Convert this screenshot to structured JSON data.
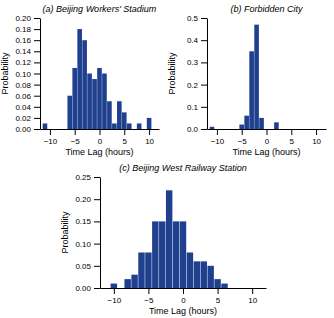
{
  "chart_data": [
    {
      "type": "histogram",
      "title": "(a) Beijing Workers' Stadium",
      "xlabel": "Time Lag (hours)",
      "ylabel": "Probability",
      "color": "#1F3F8F",
      "bins": [
        -11.5,
        -10.5,
        -9.5,
        -8.5,
        -7.5,
        -6.5,
        -5.5,
        -4.5,
        -3.5,
        -2.5,
        -1.5,
        -0.5,
        0.5,
        1.5,
        2.5,
        3.5,
        4.5,
        5.5,
        6.5,
        7.5,
        8.5,
        9.5,
        10.5,
        11.5
      ],
      "values": [
        0.01,
        0.0,
        0.0,
        0.0,
        0.0,
        0.06,
        0.11,
        0.18,
        0.16,
        0.1,
        0.09,
        0.11,
        0.1,
        0.05,
        0.01,
        0.05,
        0.03,
        0.01,
        0.0,
        0.01,
        0.0,
        0.02,
        0.0
      ],
      "xlim": [
        -12,
        12
      ],
      "xticks": [
        {
          "value": -10,
          "label": "−10"
        },
        {
          "value": -5,
          "label": "−5"
        },
        0,
        5,
        10
      ],
      "ylim": [
        0,
        0.2
      ],
      "yticks": [
        {
          "value": 0.0,
          "label": "0.00"
        },
        0.02,
        0.04,
        0.06,
        0.08,
        {
          "value": 0.1,
          "label": "0.10"
        },
        0.12,
        0.14,
        0.16,
        0.18,
        {
          "value": 0.2,
          "label": "0.20"
        }
      ]
    },
    {
      "type": "histogram",
      "title": "(b) Forbidden City",
      "xlabel": "Time Lag (hours)",
      "ylabel": "Probability",
      "color": "#1F3F8F",
      "bins": [
        -11.5,
        -10.5,
        -9.5,
        -8.5,
        -7.5,
        -6.5,
        -5.5,
        -4.5,
        -3.5,
        -2.5,
        -1.5,
        -0.5,
        0.5,
        1.5,
        2.5,
        3.5,
        4.5,
        5.5,
        6.5,
        7.5,
        8.5,
        9.5,
        10.5,
        11.5
      ],
      "values": [
        0.01,
        0.0,
        0.0,
        0.0,
        0.0,
        0.0,
        0.02,
        0.06,
        0.35,
        0.47,
        0.05,
        0.0,
        0.0,
        0.03,
        0.0,
        0.0,
        0.0,
        0.0,
        0.0,
        0.0,
        0.0,
        0.0,
        0.0
      ],
      "xlim": [
        -12,
        12
      ],
      "xticks": [
        {
          "value": -10,
          "label": "−10"
        },
        {
          "value": -5,
          "label": "−5"
        },
        0,
        5,
        10
      ],
      "ylim": [
        0,
        0.5
      ],
      "yticks": [
        {
          "value": 0.0,
          "label": "0.0"
        },
        0.1,
        0.2,
        0.3,
        0.4,
        0.5
      ]
    },
    {
      "type": "histogram",
      "title": "(c) Beijing West Railway Station",
      "xlabel": "Time Lag (hours)",
      "ylabel": "Probability",
      "color": "#1F3F8F",
      "bins": [
        -11.5,
        -10.5,
        -9.5,
        -8.5,
        -7.5,
        -6.5,
        -5.5,
        -4.5,
        -3.5,
        -2.5,
        -1.5,
        -0.5,
        0.5,
        1.5,
        2.5,
        3.5,
        4.5,
        5.5,
        6.5,
        7.5,
        8.5,
        9.5,
        10.5,
        11.5
      ],
      "values": [
        0.0,
        0.01,
        0.0,
        0.02,
        0.03,
        0.08,
        0.08,
        0.15,
        0.15,
        0.22,
        0.15,
        0.15,
        0.08,
        0.06,
        0.06,
        0.05,
        0.02,
        0.01,
        0.0,
        0.0,
        0.0,
        0.0,
        0.0
      ],
      "xlim": [
        -12,
        12
      ],
      "xticks": [
        {
          "value": -10,
          "label": "−10"
        },
        {
          "value": -5,
          "label": "−5"
        },
        0,
        5,
        10
      ],
      "ylim": [
        0,
        0.25
      ],
      "yticks": [
        {
          "value": 0.0,
          "label": "0.00"
        },
        0.05,
        {
          "value": 0.1,
          "label": "0.10"
        },
        0.15,
        {
          "value": 0.2,
          "label": "0.20"
        },
        0.25
      ]
    }
  ]
}
